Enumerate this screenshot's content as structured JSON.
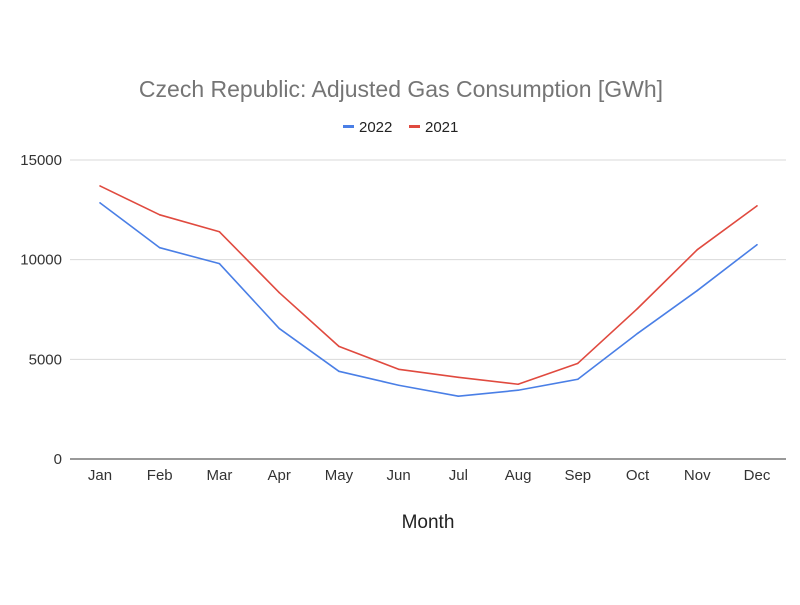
{
  "chart_data": {
    "type": "line",
    "title": "Czech Republic: Adjusted Gas Consumption [GWh]",
    "xlabel": "Month",
    "ylabel": "",
    "categories": [
      "Jan",
      "Feb",
      "Mar",
      "Apr",
      "May",
      "Jun",
      "Jul",
      "Aug",
      "Sep",
      "Oct",
      "Nov",
      "Dec"
    ],
    "ylim": [
      0,
      15000
    ],
    "yticks": [
      "0",
      "5000",
      "10000",
      "15000"
    ],
    "grid": true,
    "legend_position": "top",
    "series": [
      {
        "name": "2022",
        "color": "#4a7fe6",
        "values": [
          12850,
          10600,
          9800,
          6550,
          4400,
          3700,
          3150,
          3450,
          4000,
          6300,
          8450,
          10750
        ]
      },
      {
        "name": "2021",
        "color": "#e04a3f",
        "values": [
          13700,
          12250,
          11400,
          8350,
          5650,
          4500,
          4100,
          3750,
          4800,
          7550,
          10500,
          12700
        ]
      }
    ]
  }
}
